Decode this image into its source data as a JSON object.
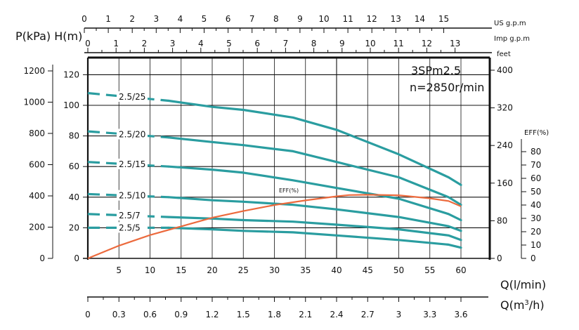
{
  "chart_data": {
    "type": "line",
    "title": "3SPm2.5",
    "subtitle": "n=2850r/min",
    "x": [
      0,
      5,
      10,
      15,
      20,
      25,
      30,
      35,
      40,
      45,
      50,
      55,
      60
    ],
    "x_ticks": [
      "5",
      "10",
      "15",
      "20",
      "25",
      "30",
      "35",
      "40",
      "45",
      "50",
      "55",
      "60"
    ],
    "xlabel": "Q(l/min)",
    "xlabel2": "Q(m3/h)",
    "x2_ticks": [
      "0",
      "0.3",
      "0.6",
      "0.9",
      "1.2",
      "1.5",
      "1.8",
      "2.1",
      "2.4",
      "2.7",
      "3",
      "3.3",
      "3.6"
    ],
    "top_axis1_label": "US g.p.m",
    "top_axis1_ticks": [
      "0",
      "1",
      "2",
      "3",
      "4",
      "5",
      "6",
      "7",
      "8",
      "9",
      "10",
      "11",
      "12",
      "13",
      "14",
      "15"
    ],
    "top_axis2_label": "Imp g.p.m",
    "top_axis2_ticks": [
      "0",
      "1",
      "2",
      "3",
      "4",
      "5",
      "6",
      "7",
      "8",
      "9",
      "10",
      "11",
      "12",
      "13"
    ],
    "ylabel": "P(kPa) H(m)",
    "y_head_ticks": [
      "0",
      "20",
      "40",
      "60",
      "80",
      "100",
      "120"
    ],
    "y_kpa_ticks": [
      "0",
      "200",
      "400",
      "600",
      "800",
      "1000",
      "1200"
    ],
    "ylim": [
      0,
      130
    ],
    "right_axis_label": "feet",
    "right_axis_ticks": [
      "0",
      "80",
      "160",
      "240",
      "320",
      "400"
    ],
    "eff_axis_label": "EFF(%)",
    "eff_ticks": [
      "0",
      "10",
      "20",
      "30",
      "40",
      "50",
      "60",
      "70",
      "80"
    ],
    "eff_label": "EFF(%)",
    "series": [
      {
        "name": "2.5/25",
        "label": "2.5/25",
        "dashed_x": [
          0,
          13
        ],
        "dashed_y": [
          108,
          103
        ],
        "x": [
          13,
          20,
          25,
          33,
          40,
          50,
          58,
          60
        ],
        "y": [
          103,
          99,
          97,
          92,
          84,
          68,
          53,
          48
        ]
      },
      {
        "name": "2.5/20",
        "label": "2.5/20",
        "dashed_x": [
          0,
          13
        ],
        "dashed_y": [
          83,
          79
        ],
        "x": [
          13,
          20,
          25,
          33,
          40,
          50,
          58,
          60
        ],
        "y": [
          79,
          76,
          74,
          70,
          63,
          53,
          40,
          35
        ]
      },
      {
        "name": "2.5/15",
        "label": "2.5/15",
        "dashed_x": [
          0,
          13
        ],
        "dashed_y": [
          63,
          60
        ],
        "x": [
          13,
          20,
          25,
          33,
          40,
          50,
          58,
          60
        ],
        "y": [
          60,
          58,
          56,
          51,
          46,
          39,
          29,
          25
        ]
      },
      {
        "name": "2.5/10",
        "label": "2.5/10",
        "dashed_x": [
          0,
          13
        ],
        "dashed_y": [
          42,
          40
        ],
        "x": [
          13,
          20,
          25,
          33,
          40,
          50,
          58,
          60
        ],
        "y": [
          40,
          38,
          37,
          35,
          32,
          27,
          21,
          18
        ]
      },
      {
        "name": "2.5/7",
        "label": "2.5/7",
        "dashed_x": [
          0,
          13
        ],
        "dashed_y": [
          29,
          27
        ],
        "x": [
          13,
          20,
          25,
          33,
          40,
          50,
          58,
          60
        ],
        "y": [
          27,
          26,
          25,
          24,
          22,
          19,
          15,
          12
        ]
      },
      {
        "name": "2.5/5",
        "label": "2.5/5",
        "dashed_x": [
          0,
          13
        ],
        "dashed_y": [
          20,
          20
        ],
        "x": [
          13,
          20,
          25,
          33,
          40,
          50,
          58,
          60
        ],
        "y": [
          20,
          19,
          18,
          17,
          15,
          12,
          9,
          7
        ]
      }
    ],
    "efficiency": {
      "name": "EFF(%)",
      "x": [
        0,
        5,
        10,
        15,
        20,
        25,
        30,
        35,
        40,
        42,
        45,
        50,
        55,
        58,
        60
      ],
      "y": [
        0,
        9.5,
        17.5,
        24,
        30.5,
        35.5,
        40,
        43.5,
        46.5,
        47.5,
        47.7,
        47.3,
        45,
        43,
        39
      ]
    }
  }
}
